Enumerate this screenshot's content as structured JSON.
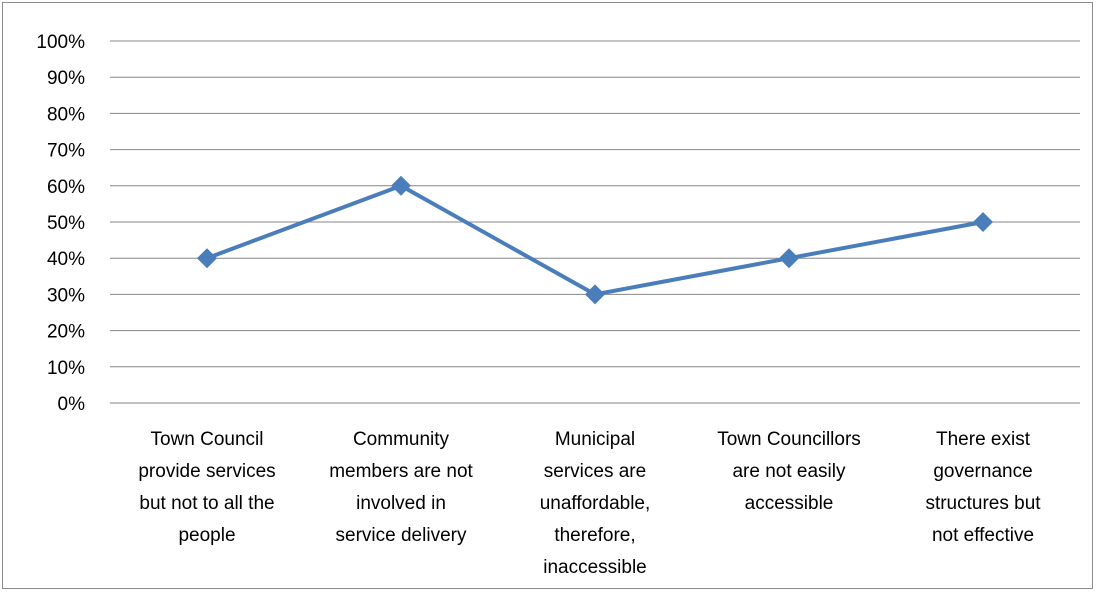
{
  "chart_data": {
    "type": "line",
    "title": "",
    "xlabel": "",
    "ylabel": "",
    "ylim": [
      0,
      100
    ],
    "y_tick_step": 10,
    "y_tick_format": "percent",
    "y_ticks": [
      "0%",
      "10%",
      "20%",
      "30%",
      "40%",
      "50%",
      "60%",
      "70%",
      "80%",
      "90%",
      "100%"
    ],
    "grid": true,
    "legend": "none",
    "categories": [
      [
        "Town Council",
        "provide services",
        "but not to all the",
        "people"
      ],
      [
        "Community",
        "members are not",
        "involved in",
        "service delivery"
      ],
      [
        "Municipal",
        "services are",
        "unaffordable,",
        "therefore,",
        "inaccessible"
      ],
      [
        "Town Councillors",
        "are not easily",
        "accessible"
      ],
      [
        "There exist",
        "governance",
        "structures but",
        "not effective"
      ]
    ],
    "series": [
      {
        "values": [
          40,
          60,
          30,
          40,
          50
        ],
        "color": "#4a7ebb",
        "marker": "diamond"
      }
    ],
    "gridline_color": "#868686"
  }
}
